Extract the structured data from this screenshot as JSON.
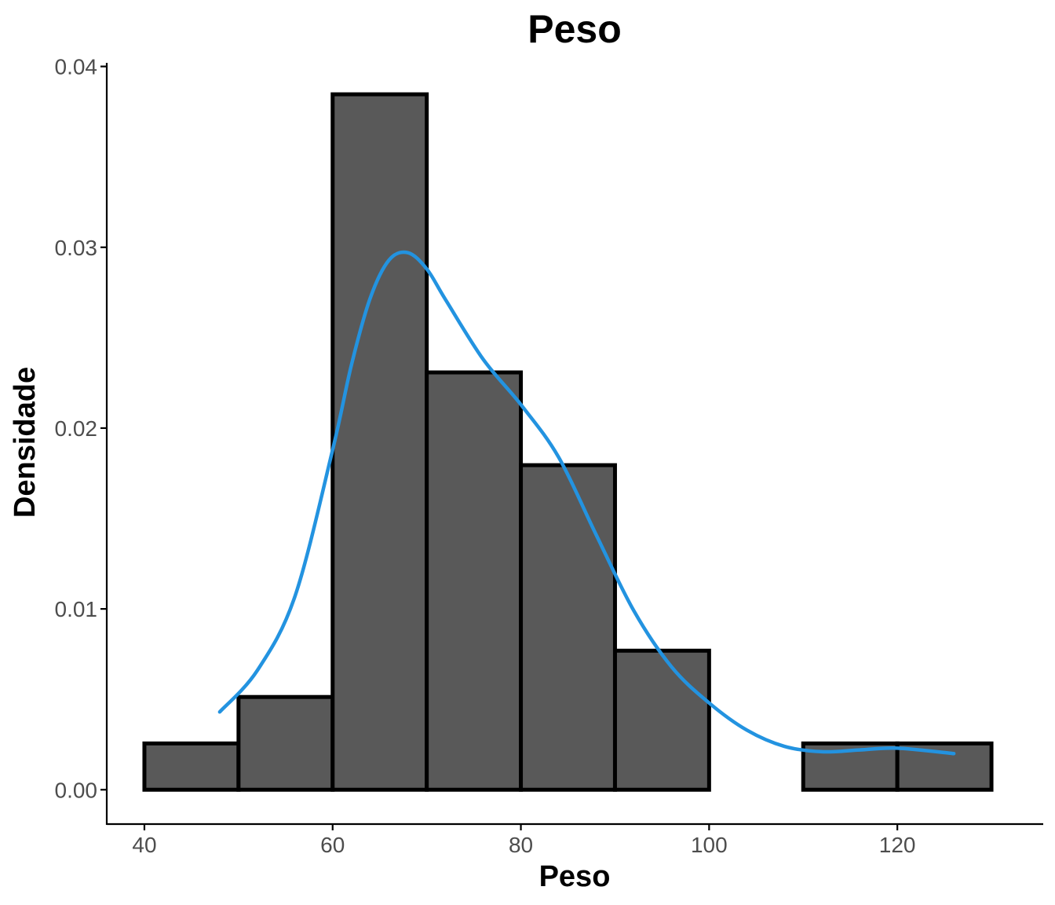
{
  "chart_data": {
    "type": "bar",
    "subtype": "histogram-with-density",
    "title": "Peso",
    "xlabel": "Peso",
    "ylabel": "Densidade",
    "xlim": [
      36,
      135.5
    ],
    "ylim": [
      -0.0019,
      0.0402
    ],
    "x_ticks": [
      40,
      60,
      80,
      100,
      120
    ],
    "x_tick_labels": [
      "40",
      "60",
      "80",
      "100",
      "120"
    ],
    "y_ticks": [
      0.0,
      0.01,
      0.02,
      0.03,
      0.04
    ],
    "y_tick_labels": [
      "0.00",
      "0.01",
      "0.02",
      "0.03",
      "0.04"
    ],
    "grid": false,
    "legend": "none",
    "bins": [
      {
        "x0": 40,
        "x1": 50,
        "density": 0.00256
      },
      {
        "x0": 50,
        "x1": 60,
        "density": 0.00513
      },
      {
        "x0": 60,
        "x1": 70,
        "density": 0.03846
      },
      {
        "x0": 70,
        "x1": 80,
        "density": 0.02308
      },
      {
        "x0": 80,
        "x1": 90,
        "density": 0.01795
      },
      {
        "x0": 90,
        "x1": 100,
        "density": 0.00769
      },
      {
        "x0": 100,
        "x1": 110,
        "density": 0.0
      },
      {
        "x0": 110,
        "x1": 120,
        "density": 0.00256
      },
      {
        "x0": 120,
        "x1": 130,
        "density": 0.00256
      }
    ],
    "density_curve": {
      "x": [
        48,
        52,
        56,
        60,
        62,
        64,
        66,
        68,
        70,
        72,
        76,
        80,
        84,
        88,
        92,
        96,
        100,
        104,
        108,
        112,
        116,
        120,
        126
      ],
      "y": [
        0.0043,
        0.0066,
        0.0107,
        0.0188,
        0.0235,
        0.0272,
        0.0293,
        0.0297,
        0.0288,
        0.0271,
        0.0238,
        0.0213,
        0.0184,
        0.0141,
        0.0099,
        0.0068,
        0.0048,
        0.0033,
        0.0024,
        0.0021,
        0.0022,
        0.0023,
        0.002
      ]
    },
    "colors": {
      "bar_fill": "#595959",
      "bar_outline": "#000000",
      "curve": "#2393e0",
      "axis": "#000000",
      "tick_text": "#4d4d4d"
    }
  }
}
